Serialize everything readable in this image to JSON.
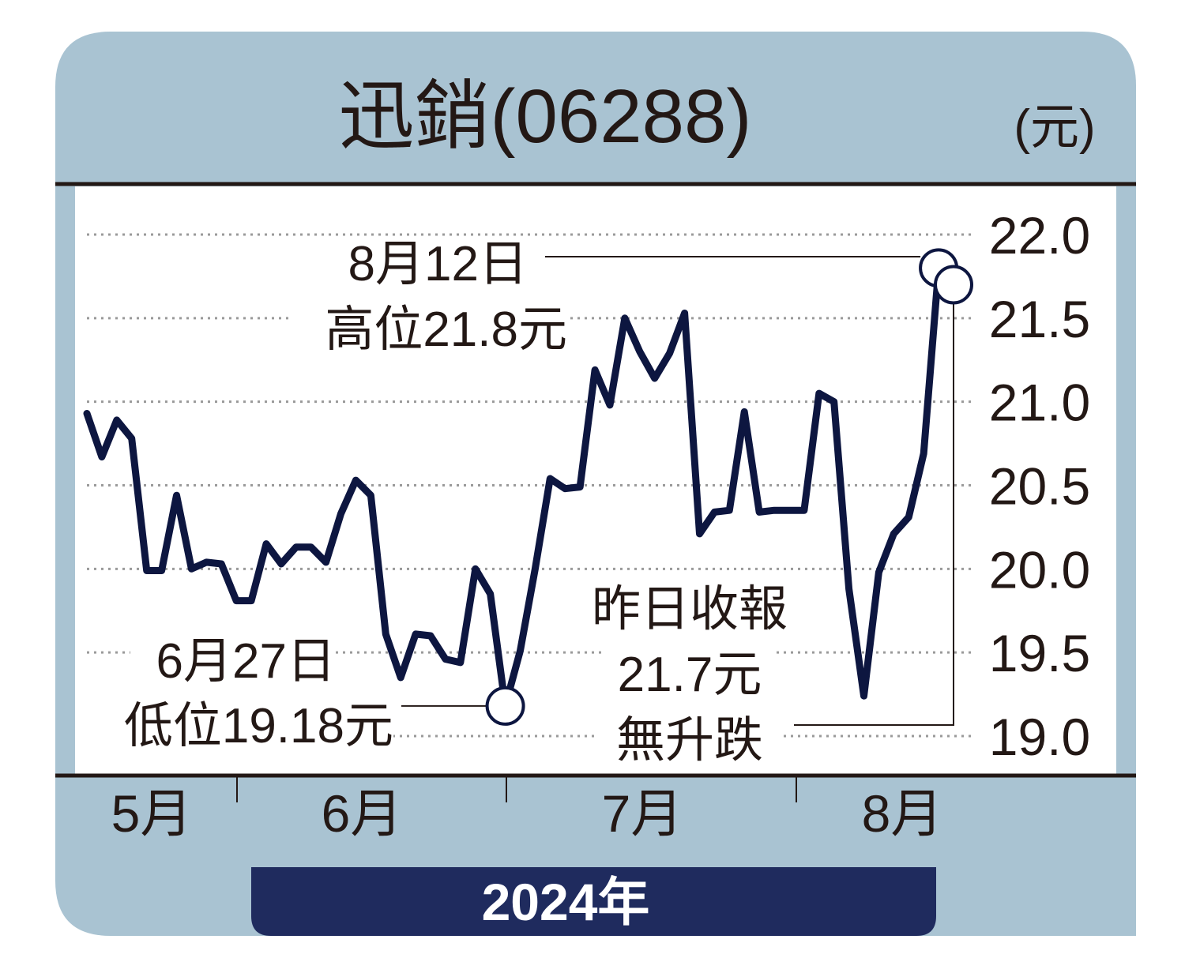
{
  "chart_data": {
    "type": "line",
    "title": "迅銷(06288)",
    "unit_label": "(元)",
    "year_label": "2024年",
    "x_ticks": [
      "5月",
      "6月",
      "7月",
      "8月"
    ],
    "y_ticks": [
      "22.0",
      "21.5",
      "21.0",
      "20.5",
      "20.0",
      "19.5",
      "19.0"
    ],
    "ylim": [
      19.0,
      22.0
    ],
    "grid": true,
    "line_color": "#0d1640",
    "panel_color": "#a9c3d2",
    "series": [
      {
        "values": [
          20.93,
          20.67,
          20.89,
          20.78,
          19.99,
          19.99,
          20.44,
          20.0,
          20.04,
          20.03,
          19.81,
          19.81,
          20.15,
          20.03,
          20.13,
          20.13,
          20.04,
          20.33,
          20.53,
          20.44,
          19.61,
          19.35,
          19.61,
          19.6,
          19.46,
          19.44,
          20.0,
          19.85,
          19.18,
          19.51,
          20.0,
          20.54,
          20.48,
          20.49,
          21.19,
          20.98,
          21.5,
          21.3,
          21.14,
          21.29,
          21.53,
          20.21,
          20.34,
          20.35,
          20.94,
          20.34,
          20.35,
          20.35,
          20.35,
          21.05,
          21.0,
          19.88,
          19.24,
          19.98,
          20.21,
          20.31,
          20.69,
          21.8,
          21.7
        ]
      }
    ],
    "annotations": {
      "high": {
        "line1": "8月12日",
        "line2": "高位21.8元",
        "value": 21.8
      },
      "low": {
        "line1": "6月27日",
        "line2": "低位19.18元",
        "value": 19.18
      },
      "close": {
        "line1": "昨日收報",
        "line2": "21.7元",
        "line3": "無升跌",
        "value": 21.7
      }
    }
  }
}
